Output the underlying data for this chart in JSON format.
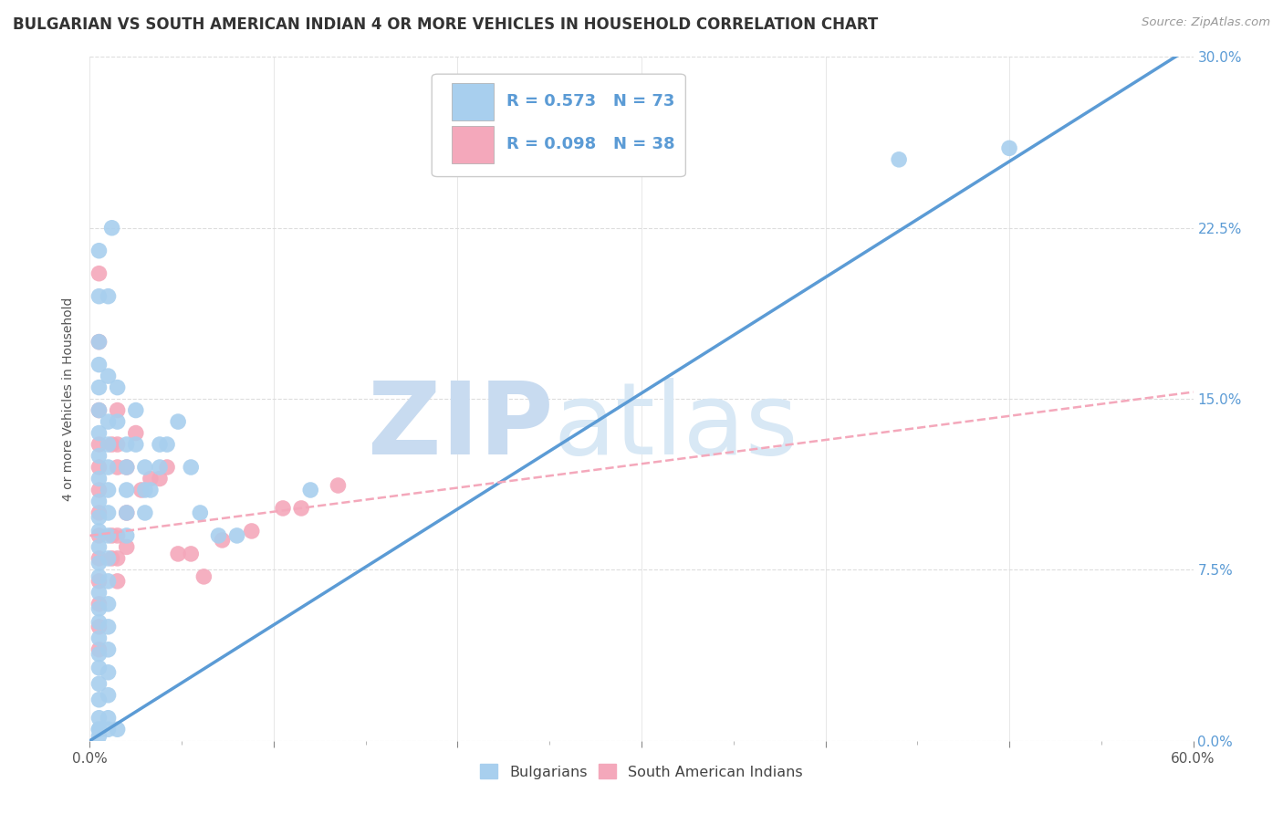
{
  "title": "BULGARIAN VS SOUTH AMERICAN INDIAN 4 OR MORE VEHICLES IN HOUSEHOLD CORRELATION CHART",
  "source": "Source: ZipAtlas.com",
  "ylabel": "4 or more Vehicles in Household",
  "xlim": [
    0.0,
    0.6
  ],
  "ylim": [
    0.0,
    0.3
  ],
  "xtick_major_vals": [
    0.0,
    0.1,
    0.2,
    0.3,
    0.4,
    0.5,
    0.6
  ],
  "xtick_minor_vals": [
    0.05,
    0.15,
    0.25,
    0.35,
    0.45,
    0.55
  ],
  "xtick_labels": [
    "0.0%",
    "",
    "",
    "",
    "",
    "",
    "60.0%"
  ],
  "ytick_vals": [
    0.0,
    0.075,
    0.15,
    0.225,
    0.3
  ],
  "ytick_labels": [
    "0.0%",
    "7.5%",
    "15.0%",
    "22.5%",
    "30.0%"
  ],
  "blue_R": 0.573,
  "blue_N": 73,
  "pink_R": 0.098,
  "pink_N": 38,
  "blue_color": "#A8CFEE",
  "pink_color": "#F4A8BB",
  "blue_line_color": "#5B9BD5",
  "pink_line_color": "#F4A8BB",
  "legend_label_blue": "Bulgarians",
  "legend_label_pink": "South American Indians",
  "blue_scatter": [
    [
      0.005,
      0.215
    ],
    [
      0.005,
      0.195
    ],
    [
      0.005,
      0.175
    ],
    [
      0.005,
      0.165
    ],
    [
      0.005,
      0.155
    ],
    [
      0.005,
      0.145
    ],
    [
      0.005,
      0.135
    ],
    [
      0.005,
      0.125
    ],
    [
      0.005,
      0.115
    ],
    [
      0.005,
      0.105
    ],
    [
      0.005,
      0.098
    ],
    [
      0.005,
      0.092
    ],
    [
      0.005,
      0.085
    ],
    [
      0.005,
      0.078
    ],
    [
      0.005,
      0.072
    ],
    [
      0.005,
      0.065
    ],
    [
      0.005,
      0.058
    ],
    [
      0.005,
      0.052
    ],
    [
      0.005,
      0.045
    ],
    [
      0.005,
      0.038
    ],
    [
      0.005,
      0.032
    ],
    [
      0.005,
      0.025
    ],
    [
      0.005,
      0.018
    ],
    [
      0.005,
      0.01
    ],
    [
      0.005,
      0.005
    ],
    [
      0.005,
      0.002
    ],
    [
      0.012,
      0.225
    ],
    [
      0.01,
      0.195
    ],
    [
      0.01,
      0.16
    ],
    [
      0.01,
      0.14
    ],
    [
      0.01,
      0.13
    ],
    [
      0.01,
      0.12
    ],
    [
      0.01,
      0.11
    ],
    [
      0.01,
      0.1
    ],
    [
      0.01,
      0.09
    ],
    [
      0.01,
      0.08
    ],
    [
      0.01,
      0.07
    ],
    [
      0.01,
      0.06
    ],
    [
      0.01,
      0.05
    ],
    [
      0.01,
      0.04
    ],
    [
      0.01,
      0.03
    ],
    [
      0.01,
      0.02
    ],
    [
      0.01,
      0.01
    ],
    [
      0.015,
      0.155
    ],
    [
      0.015,
      0.14
    ],
    [
      0.02,
      0.13
    ],
    [
      0.02,
      0.12
    ],
    [
      0.02,
      0.11
    ],
    [
      0.02,
      0.1
    ],
    [
      0.02,
      0.09
    ],
    [
      0.025,
      0.145
    ],
    [
      0.025,
      0.13
    ],
    [
      0.03,
      0.12
    ],
    [
      0.03,
      0.11
    ],
    [
      0.03,
      0.1
    ],
    [
      0.033,
      0.11
    ],
    [
      0.038,
      0.13
    ],
    [
      0.038,
      0.12
    ],
    [
      0.042,
      0.13
    ],
    [
      0.048,
      0.14
    ],
    [
      0.055,
      0.12
    ],
    [
      0.06,
      0.1
    ],
    [
      0.07,
      0.09
    ],
    [
      0.08,
      0.09
    ],
    [
      0.12,
      0.11
    ],
    [
      0.21,
      0.27
    ],
    [
      0.25,
      0.265
    ],
    [
      0.3,
      0.265
    ],
    [
      0.44,
      0.255
    ],
    [
      0.5,
      0.26
    ],
    [
      0.005,
      0.005
    ],
    [
      0.01,
      0.005
    ],
    [
      0.015,
      0.005
    ]
  ],
  "pink_scatter": [
    [
      0.005,
      0.205
    ],
    [
      0.005,
      0.175
    ],
    [
      0.005,
      0.145
    ],
    [
      0.005,
      0.13
    ],
    [
      0.005,
      0.12
    ],
    [
      0.005,
      0.11
    ],
    [
      0.005,
      0.1
    ],
    [
      0.005,
      0.09
    ],
    [
      0.005,
      0.08
    ],
    [
      0.005,
      0.07
    ],
    [
      0.005,
      0.06
    ],
    [
      0.005,
      0.05
    ],
    [
      0.005,
      0.04
    ],
    [
      0.012,
      0.13
    ],
    [
      0.012,
      0.09
    ],
    [
      0.012,
      0.08
    ],
    [
      0.015,
      0.145
    ],
    [
      0.015,
      0.13
    ],
    [
      0.015,
      0.12
    ],
    [
      0.015,
      0.09
    ],
    [
      0.015,
      0.08
    ],
    [
      0.015,
      0.07
    ],
    [
      0.02,
      0.12
    ],
    [
      0.02,
      0.1
    ],
    [
      0.02,
      0.085
    ],
    [
      0.025,
      0.135
    ],
    [
      0.028,
      0.11
    ],
    [
      0.033,
      0.115
    ],
    [
      0.038,
      0.115
    ],
    [
      0.042,
      0.12
    ],
    [
      0.048,
      0.082
    ],
    [
      0.055,
      0.082
    ],
    [
      0.062,
      0.072
    ],
    [
      0.072,
      0.088
    ],
    [
      0.088,
      0.092
    ],
    [
      0.105,
      0.102
    ],
    [
      0.115,
      0.102
    ],
    [
      0.135,
      0.112
    ]
  ],
  "blue_trendline": [
    [
      0.0,
      0.0
    ],
    [
      0.6,
      0.305
    ]
  ],
  "pink_trendline": [
    [
      0.0,
      0.09
    ],
    [
      0.6,
      0.153
    ]
  ],
  "background_color": "#FFFFFF",
  "grid_color": "#DDDDDD",
  "title_fontsize": 12,
  "axis_label_fontsize": 10,
  "tick_fontsize": 11,
  "legend_fontsize": 13
}
